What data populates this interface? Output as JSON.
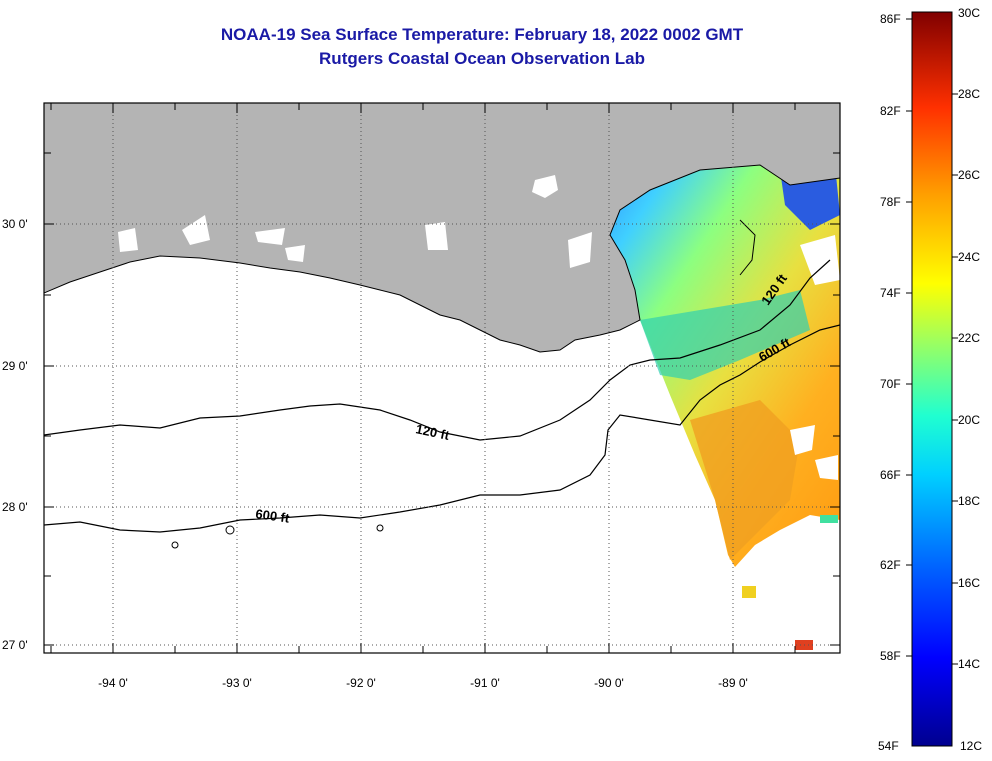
{
  "title": {
    "line1": "NOAA-19 Sea Surface Temperature:  February 18, 2022 0002 GMT",
    "line2": "Rutgers Coastal Ocean Observation Lab"
  },
  "map": {
    "lat_labels": [
      "30 0'",
      "29 0'",
      "28 0'",
      "27 0'"
    ],
    "lon_labels": [
      "-94 0'",
      "-93 0'",
      "-92 0'",
      "-91 0'",
      "-90 0'",
      "-89 0'"
    ],
    "colors": {
      "land": "#b4b4b4",
      "water": "#ffffff",
      "no_data": "#ffffff"
    },
    "contours": [
      {
        "label": "120 ft",
        "depth_ft": 120
      },
      {
        "label": "600 ft",
        "depth_ft": 600
      }
    ]
  },
  "colorbar": {
    "fahrenheit_labels": [
      "86F",
      "82F",
      "78F",
      "74F",
      "70F",
      "66F",
      "62F",
      "58F",
      "54F"
    ],
    "celsius_labels": [
      "30C",
      "28C",
      "26C",
      "24C",
      "22C",
      "20C",
      "18C",
      "16C",
      "14C",
      "12C"
    ],
    "range_c": [
      12,
      30
    ],
    "range_f": [
      54,
      86
    ]
  }
}
